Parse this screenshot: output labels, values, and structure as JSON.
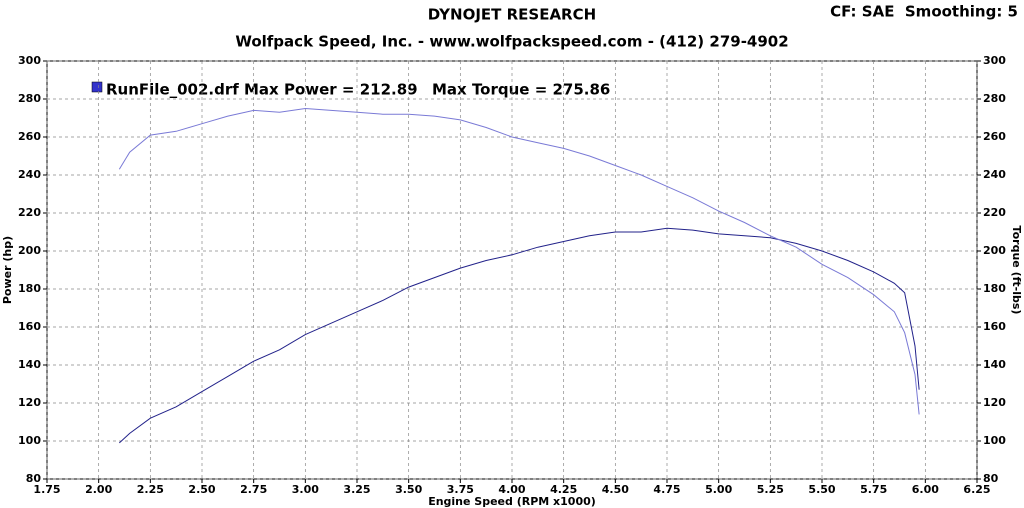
{
  "chart_data": {
    "type": "line",
    "title": "DYNOJET RESEARCH",
    "subtitle": "Wolfpack Speed, Inc. - www.wolfpackspeed.com - (412) 279-4902",
    "corner_note": "CF: SAE  Smoothing: 5",
    "legend_texts": [
      "RunFile_002.drf Max Power = 212.89",
      "Max Torque = 275.86"
    ],
    "xlabel": "Engine Speed (RPM x1000)",
    "ylabel": "Power (hp)",
    "y2label": "Torque (ft-lbs)",
    "x": [
      2.1,
      2.15,
      2.25,
      2.375,
      2.5,
      2.625,
      2.75,
      2.875,
      3.0,
      3.125,
      3.25,
      3.375,
      3.5,
      3.625,
      3.75,
      3.875,
      4.0,
      4.125,
      4.25,
      4.375,
      4.5,
      4.625,
      4.75,
      4.875,
      5.0,
      5.125,
      5.25,
      5.375,
      5.5,
      5.625,
      5.75,
      5.85,
      5.9,
      5.95,
      5.97
    ],
    "series": [
      {
        "color": "#22228a",
        "values": [
          99,
          104,
          112,
          118,
          126,
          134,
          142,
          148,
          156,
          162,
          168,
          174,
          181,
          186,
          191,
          195,
          198,
          202,
          205,
          208,
          210,
          210,
          212,
          211,
          209,
          208,
          207,
          204,
          200,
          195,
          189,
          183,
          178,
          150,
          127
        ]
      },
      {
        "color": "#7a7ad6",
        "axis": "y2",
        "values": [
          243,
          252,
          261,
          263,
          267,
          271,
          274,
          273,
          275,
          274,
          273,
          272,
          272,
          271,
          269,
          265,
          260,
          257,
          254,
          250,
          245,
          240,
          234,
          228,
          221,
          215,
          208,
          202,
          193,
          186,
          177,
          168,
          157,
          135,
          114
        ]
      }
    ],
    "xlim": [
      1.75,
      6.25
    ],
    "xticks": [
      {
        "value": 1.75,
        "label": "1.75"
      },
      {
        "value": 2,
        "label": "2.00"
      },
      {
        "value": 2.25,
        "label": "2.25"
      },
      {
        "value": 2.5,
        "label": "2.50"
      },
      {
        "value": 2.75,
        "label": "2.75"
      },
      {
        "value": 3,
        "label": "3.00"
      },
      {
        "value": 3.25,
        "label": "3.25"
      },
      {
        "value": 3.5,
        "label": "3.50"
      },
      {
        "value": 3.75,
        "label": "3.75"
      },
      {
        "value": 4,
        "label": "4.00"
      },
      {
        "value": 4.25,
        "label": "4.25"
      },
      {
        "value": 4.5,
        "label": "4.50"
      },
      {
        "value": 4.75,
        "label": "4.75"
      },
      {
        "value": 5,
        "label": "5.00"
      },
      {
        "value": 5.25,
        "label": "5.25"
      },
      {
        "value": 5.5,
        "label": "5.50"
      },
      {
        "value": 5.75,
        "label": "5.75"
      },
      {
        "value": 6,
        "label": "6.00"
      },
      {
        "value": 6.25,
        "label": "6.25"
      }
    ],
    "ylim": [
      80,
      300
    ],
    "yticks": [
      80,
      100,
      120,
      140,
      160,
      180,
      200,
      220,
      240,
      260,
      280,
      300
    ],
    "y2lim": [
      80,
      300
    ],
    "y2ticks": [
      80,
      100,
      120,
      140,
      160,
      180,
      200,
      220,
      240,
      260,
      280,
      300
    ],
    "grid": true
  }
}
